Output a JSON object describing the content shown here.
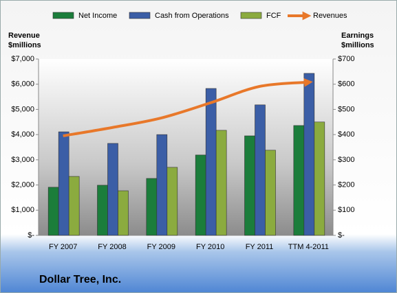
{
  "chart_data": {
    "type": "combo",
    "title": "Dollar Tree, Inc.",
    "ylabel": [
      "Revenue",
      "$millions"
    ],
    "y2label": [
      "Earnings",
      "$millions"
    ],
    "categories": [
      "FY 2007",
      "FY 2008",
      "FY 2009",
      "FY 2010",
      "FY 2011",
      "TTM 4-2011"
    ],
    "series": [
      {
        "name": "Net Income",
        "type": "bar",
        "axis": "y2",
        "color": "#1b7d3b",
        "values": [
          191,
          199,
          226,
          319,
          395,
          436
        ]
      },
      {
        "name": "Cash from Operations",
        "type": "bar",
        "axis": "y2",
        "color": "#3b5ea6",
        "values": [
          411,
          365,
          400,
          583,
          518,
          643
        ]
      },
      {
        "name": "FCF",
        "type": "bar",
        "axis": "y2",
        "color": "#8bab3f",
        "values": [
          234,
          177,
          270,
          417,
          338,
          450
        ]
      },
      {
        "name": "Revenues",
        "type": "line",
        "axis": "y",
        "color": "#e8782a",
        "values": [
          3950,
          4280,
          4660,
          5260,
          5910,
          6080
        ]
      }
    ],
    "ylim": [
      0,
      7000
    ],
    "yticks": [
      {
        "value": 0,
        "label": "$-"
      },
      {
        "value": 1000,
        "label": "$1,000"
      },
      {
        "value": 2000,
        "label": "$2,000"
      },
      {
        "value": 3000,
        "label": "$3,000"
      },
      {
        "value": 4000,
        "label": "$4,000"
      },
      {
        "value": 5000,
        "label": "$5,000"
      },
      {
        "value": 6000,
        "label": "$6,000"
      },
      {
        "value": 7000,
        "label": "$7,000"
      }
    ],
    "y2lim": [
      0,
      700
    ],
    "y2ticks": [
      {
        "value": 0,
        "label": "$-"
      },
      {
        "value": 100,
        "label": "$100"
      },
      {
        "value": 200,
        "label": "$200"
      },
      {
        "value": 300,
        "label": "$300"
      },
      {
        "value": 400,
        "label": "$400"
      },
      {
        "value": 500,
        "label": "$500"
      },
      {
        "value": 600,
        "label": "$600"
      },
      {
        "value": 700,
        "label": "$700"
      }
    ],
    "legend": "top"
  }
}
